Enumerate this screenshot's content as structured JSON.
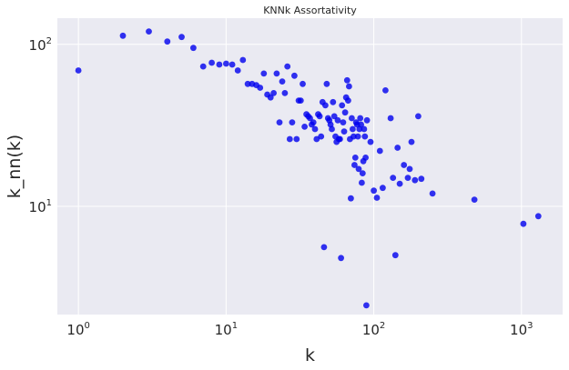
{
  "chart_data": {
    "type": "scatter",
    "title": "KNNk Assortativity",
    "xlabel": "k",
    "ylabel": "k_nn(k)",
    "xscale": "log",
    "yscale": "log",
    "xlim": [
      0.72,
      1900
    ],
    "ylim": [
      2.15,
      145
    ],
    "xticks": [
      {
        "value": 1,
        "base": "10",
        "exp": "0"
      },
      {
        "value": 10,
        "base": "10",
        "exp": "1"
      },
      {
        "value": 100,
        "base": "10",
        "exp": "2"
      },
      {
        "value": 1000,
        "base": "10",
        "exp": "3"
      }
    ],
    "yticks": [
      {
        "value": 10,
        "base": "10",
        "exp": "1"
      },
      {
        "value": 100,
        "base": "10",
        "exp": "2"
      }
    ],
    "grid": true,
    "background": "#eaeaf2",
    "gridColor": "#ffffff",
    "markerColor": "#0000ee",
    "points": [
      [
        1,
        69
      ],
      [
        2,
        113
      ],
      [
        3,
        120
      ],
      [
        4,
        104
      ],
      [
        5,
        111
      ],
      [
        6,
        95
      ],
      [
        7,
        73
      ],
      [
        8,
        77
      ],
      [
        9,
        75
      ],
      [
        10,
        76
      ],
      [
        11,
        75
      ],
      [
        12,
        69
      ],
      [
        13,
        80
      ],
      [
        14,
        57
      ],
      [
        15,
        57
      ],
      [
        16,
        56
      ],
      [
        17,
        54
      ],
      [
        18,
        66
      ],
      [
        19,
        49
      ],
      [
        20,
        47
      ],
      [
        21,
        50
      ],
      [
        22,
        66
      ],
      [
        23,
        33
      ],
      [
        24,
        59
      ],
      [
        25,
        50
      ],
      [
        26,
        73
      ],
      [
        27,
        26
      ],
      [
        28,
        33
      ],
      [
        29,
        64
      ],
      [
        30,
        26
      ],
      [
        31,
        45
      ],
      [
        32,
        45
      ],
      [
        33,
        57
      ],
      [
        34,
        31
      ],
      [
        35,
        37
      ],
      [
        36,
        36
      ],
      [
        37,
        35
      ],
      [
        38,
        32
      ],
      [
        39,
        33
      ],
      [
        40,
        30
      ],
      [
        41,
        26
      ],
      [
        42,
        37
      ],
      [
        43,
        36
      ],
      [
        44,
        27
      ],
      [
        45,
        44
      ],
      [
        46,
        5.6
      ],
      [
        47,
        42
      ],
      [
        48,
        57
      ],
      [
        49,
        35
      ],
      [
        50,
        34
      ],
      [
        51,
        32
      ],
      [
        52,
        30
      ],
      [
        53,
        44
      ],
      [
        54,
        36
      ],
      [
        55,
        27
      ],
      [
        56,
        25
      ],
      [
        57,
        34
      ],
      [
        58,
        26
      ],
      [
        59,
        26
      ],
      [
        60,
        4.8
      ],
      [
        61,
        42
      ],
      [
        62,
        33
      ],
      [
        63,
        29
      ],
      [
        64,
        38
      ],
      [
        65,
        47
      ],
      [
        66,
        60
      ],
      [
        67,
        45
      ],
      [
        68,
        55
      ],
      [
        69,
        26
      ],
      [
        70,
        11.2
      ],
      [
        71,
        35
      ],
      [
        72,
        30
      ],
      [
        73,
        27
      ],
      [
        74,
        18
      ],
      [
        75,
        20
      ],
      [
        76,
        33
      ],
      [
        77,
        32
      ],
      [
        78,
        27
      ],
      [
        79,
        17
      ],
      [
        80,
        30
      ],
      [
        81,
        35
      ],
      [
        82,
        32
      ],
      [
        83,
        14
      ],
      [
        84,
        16
      ],
      [
        85,
        19
      ],
      [
        86,
        30
      ],
      [
        87,
        27
      ],
      [
        88,
        20
      ],
      [
        89,
        2.45
      ],
      [
        90,
        34
      ],
      [
        95,
        25
      ],
      [
        100,
        12.5
      ],
      [
        105,
        11.3
      ],
      [
        110,
        22
      ],
      [
        115,
        13
      ],
      [
        120,
        52
      ],
      [
        130,
        35
      ],
      [
        135,
        15
      ],
      [
        140,
        5.0
      ],
      [
        145,
        23
      ],
      [
        150,
        13.8
      ],
      [
        160,
        18
      ],
      [
        170,
        15
      ],
      [
        175,
        17
      ],
      [
        180,
        25
      ],
      [
        190,
        14.5
      ],
      [
        200,
        36
      ],
      [
        210,
        14.8
      ],
      [
        250,
        12
      ],
      [
        480,
        11
      ],
      [
        1030,
        7.8
      ],
      [
        1300,
        8.7
      ]
    ]
  }
}
